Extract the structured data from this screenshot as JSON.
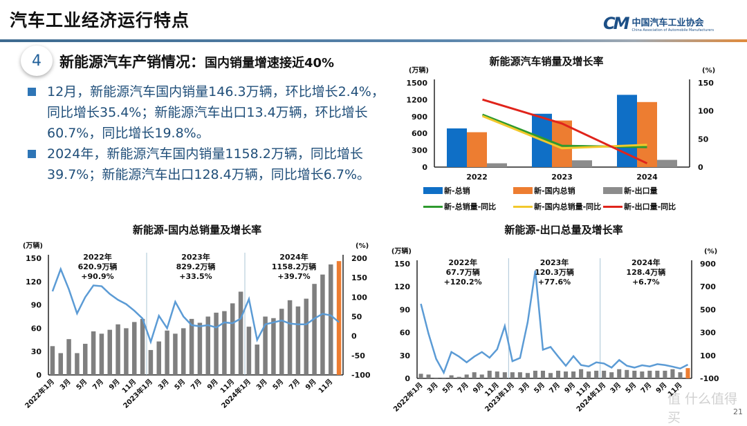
{
  "header": {
    "title": "汽车工业经济运行特点",
    "logo_cn": "中国汽车工业协会",
    "logo_en": "China Association of Automobile Manufacturers",
    "logo_mark": "CM"
  },
  "section": {
    "number": "4",
    "title": "新能源汽车产销情况：",
    "subtitle": "国内销量增速接近40%"
  },
  "bullets": [
    "12月，新能源汽车国内销量146.3万辆，环比增长2.4%，同比增长35.4%；新能源汽车出口13.4万辆，环比增长60.7%，同比增长19.8%。",
    "2024年，新能源汽车国内销量1158.2万辆，同比增长39.7%；新能源汽车出口128.4万辆，同比增长6.7%。"
  ],
  "watermark": "值 什么值得买",
  "page_number": "21",
  "colors": {
    "blue": "#0f6fc6",
    "orange": "#ed7d31",
    "gray": "#808080",
    "green": "#2e9a2e",
    "yellow": "#f2c82c",
    "red": "#e0241b",
    "line_blue": "#5b9bd5",
    "highlight": "#ed7d31"
  },
  "chart_data": [
    {
      "type": "bar",
      "title": "新能源汽车销量及增长率",
      "ylabel": "(万辆)",
      "y2label": "(%)",
      "ylim": [
        0,
        1500
      ],
      "yticks": [
        0,
        300,
        600,
        900,
        1200,
        1500
      ],
      "y2lim": [
        0,
        150
      ],
      "y2ticks": [
        0,
        50,
        100,
        150
      ],
      "categories": [
        "2022",
        "2023",
        "2024"
      ],
      "series": [
        {
          "name": "新-总销",
          "kind": "bar",
          "color": "#0f6fc6",
          "values": [
            688.7,
            949.5,
            1286.6
          ]
        },
        {
          "name": "新-国内总销",
          "kind": "bar",
          "color": "#ed7d31",
          "values": [
            620.9,
            829.2,
            1158.2
          ]
        },
        {
          "name": "新-出口量",
          "kind": "bar",
          "color": "#8c8c8c",
          "values": [
            67.7,
            120.3,
            128.4
          ]
        },
        {
          "name": "新-总销量-同比",
          "kind": "line",
          "axis": "y2",
          "color": "#2e9a2e",
          "values": [
            93.4,
            37.9,
            35.5
          ]
        },
        {
          "name": "新-国内总销量-同比",
          "kind": "line",
          "axis": "y2",
          "color": "#f2c82c",
          "values": [
            90.9,
            33.5,
            39.7
          ]
        },
        {
          "name": "新-出口量-同比",
          "kind": "line",
          "axis": "y2",
          "color": "#e0241b",
          "values": [
            120.2,
            77.6,
            6.7
          ]
        }
      ],
      "legend": "bottom"
    },
    {
      "type": "bar",
      "title": "新能源-国内总销量及增长率",
      "ylabel": "(万辆)",
      "y2label": "(%)",
      "ylim": [
        0,
        150
      ],
      "yticks": [
        0,
        30,
        60,
        90,
        120,
        150
      ],
      "y2lim": [
        -100,
        200
      ],
      "y2ticks": [
        -100,
        -50,
        0,
        50,
        100,
        150,
        200
      ],
      "xticklabels": [
        "2022年1月",
        "3月",
        "5月",
        "7月",
        "9月",
        "11月",
        "2023年1月",
        "3月",
        "5月",
        "7月",
        "9月",
        "11月",
        "2024年1月",
        "3月",
        "5月",
        "7月",
        "9月",
        "11月"
      ],
      "annotations": [
        {
          "year": "2022年",
          "volume": "620.9万辆",
          "growth": "+90.9%"
        },
        {
          "year": "2023年",
          "volume": "829.2万辆",
          "growth": "+33.5%"
        },
        {
          "year": "2024年",
          "volume": "1158.2万辆",
          "growth": "+39.7%"
        }
      ],
      "bars": [
        37,
        28,
        46,
        28,
        40,
        56,
        53,
        58,
        65,
        60,
        68,
        72,
        32,
        43,
        57,
        53,
        60,
        72,
        67,
        75,
        80,
        82,
        92,
        107,
        62,
        39,
        75,
        73,
        85,
        96,
        88,
        98,
        117,
        129,
        142,
        146.3
      ],
      "line": [
        115,
        172,
        120,
        58,
        100,
        130,
        128,
        108,
        93,
        82,
        65,
        45,
        -15,
        52,
        20,
        88,
        50,
        28,
        25,
        28,
        22,
        35,
        33,
        45,
        95,
        -10,
        30,
        35,
        40,
        32,
        30,
        30,
        45,
        57,
        53,
        35.4
      ]
    },
    {
      "type": "bar",
      "title": "新能源-出口总量及增长率",
      "ylabel": "(万辆)",
      "y2label": "(%)",
      "ylim": [
        0,
        150
      ],
      "yticks": [
        0,
        30,
        60,
        90,
        120,
        150
      ],
      "y2lim": [
        -100,
        900
      ],
      "y2ticks": [
        -100,
        100,
        300,
        500,
        700,
        900
      ],
      "xticklabels": [
        "2022年1月",
        "3月",
        "5月",
        "7月",
        "9月",
        "11月",
        "2023年1月",
        "3月",
        "5月",
        "7月",
        "9月",
        "11月",
        "2024年1月",
        "3月",
        "5月",
        "7月",
        "9月",
        "11月"
      ],
      "annotations": [
        {
          "year": "2022年",
          "volume": "67.7万辆",
          "growth": "+120.2%"
        },
        {
          "year": "2023年",
          "volume": "120.3万辆",
          "growth": "+77.6%"
        },
        {
          "year": "2024年",
          "volume": "128.4万辆",
          "growth": "+6.7%"
        }
      ],
      "bars": [
        6,
        5,
        1,
        1,
        4,
        2,
        5,
        8,
        5,
        10,
        9,
        8,
        8,
        8,
        7,
        10,
        10,
        7,
        10,
        9,
        9,
        12,
        9,
        10,
        10,
        8,
        12,
        11,
        10,
        9,
        10,
        10,
        10,
        12,
        8,
        13.4
      ],
      "line": [
        550,
        290,
        70,
        -50,
        130,
        90,
        40,
        90,
        130,
        80,
        154,
        356,
        50,
        78,
        390,
        840,
        150,
        174,
        90,
        10,
        94,
        16,
        4,
        40,
        30,
        -6,
        60,
        10,
        -6,
        14,
        4,
        24,
        16,
        2,
        -14,
        19.8
      ]
    }
  ]
}
